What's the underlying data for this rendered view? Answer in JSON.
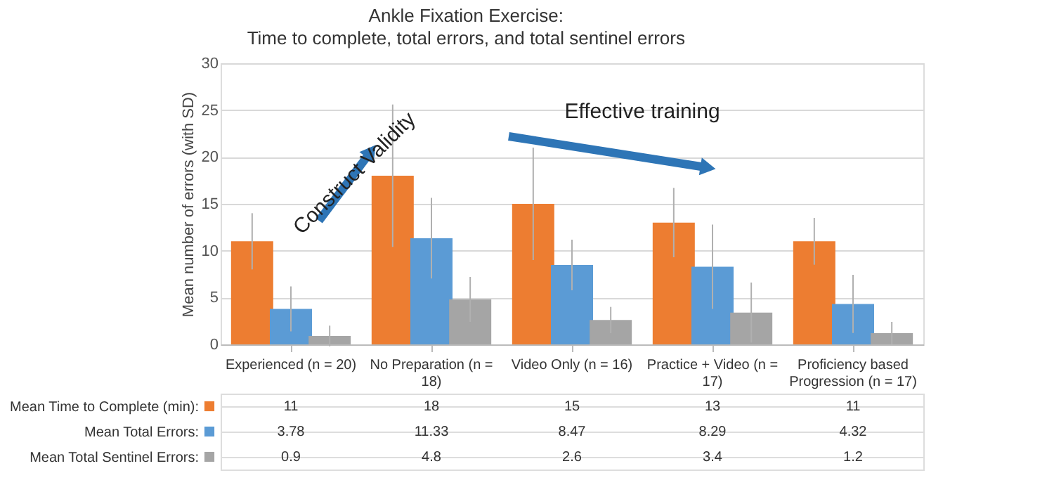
{
  "chart_data": {
    "type": "bar",
    "title": "Ankle Fixation Exercise:",
    "subtitle": "Time to complete, total errors, and total sentinel errors",
    "ylabel": "Mean number of errors (with SD)",
    "categories": [
      "Experienced (n = 20)",
      "No Preparation (n = 18)",
      "Video Only (n = 16)",
      "Practice + Video (n = 17)",
      "Proficiency based Progression (n = 17)"
    ],
    "series": [
      {
        "name": "Mean Time to Complete (min):",
        "color": "#ed7d31",
        "values": [
          11,
          18,
          15,
          13,
          11
        ],
        "errors": [
          3,
          7.6,
          6,
          3.7,
          2.5
        ]
      },
      {
        "name": "Mean Total Errors:",
        "color": "#5b9bd5",
        "values": [
          3.78,
          11.33,
          8.47,
          8.29,
          4.32
        ],
        "errors": [
          2.4,
          4.3,
          2.7,
          4.5,
          3.1
        ]
      },
      {
        "name": "Mean Total Sentinel Errors:",
        "color": "#a5a5a5",
        "values": [
          0.9,
          4.8,
          2.6,
          3.4,
          1.2
        ],
        "errors": [
          1.1,
          2.4,
          1.4,
          3.2,
          1.2
        ]
      }
    ],
    "ylim": [
      0,
      30
    ],
    "yticks": [
      0,
      5,
      10,
      15,
      20,
      25,
      30
    ],
    "grid": "y",
    "legend": "bottom",
    "data_labels": true,
    "annotations": [
      "Construct Validity",
      "Effective training"
    ]
  }
}
